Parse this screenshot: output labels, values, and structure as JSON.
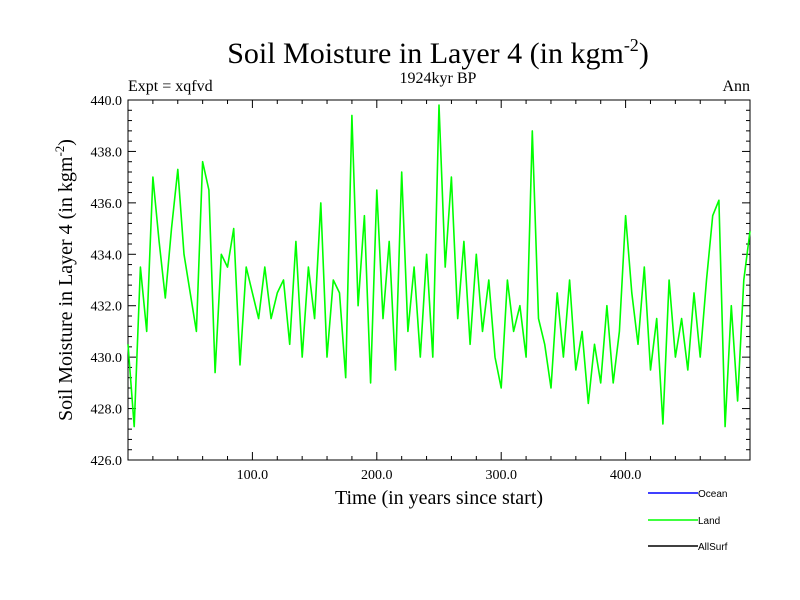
{
  "chart_data": {
    "type": "line",
    "title_main": "Soil Moisture in Layer 4 (in kgm",
    "title_sup": "-2",
    "title_close": ")",
    "subtitle": "1924kyr BP",
    "left_label": "Expt = xqfvd",
    "right_label": "Ann",
    "xlabel": "Time (in years since start)",
    "ylabel_main": "Soil Moisture in Layer 4 (in kgm",
    "ylabel_sup": "-2",
    "ylabel_close": ")",
    "xlim": [
      0,
      500
    ],
    "ylim": [
      426.0,
      440.0
    ],
    "x_ticks": [
      100,
      200,
      300,
      400
    ],
    "x_tick_labels": [
      "100.0",
      "200.0",
      "300.0",
      "400.0"
    ],
    "y_ticks": [
      426,
      428,
      430,
      432,
      434,
      436,
      438,
      440
    ],
    "y_tick_labels": [
      "426.0",
      "428.0",
      "430.0",
      "432.0",
      "434.0",
      "436.0",
      "438.0",
      "440.0"
    ],
    "legend": [
      {
        "name": "Ocean",
        "color": "#0000ff"
      },
      {
        "name": "Land",
        "color": "#00ff00"
      },
      {
        "name": "AllSurf",
        "color": "#000000"
      }
    ],
    "series": [
      {
        "name": "Land",
        "color": "#00ff00",
        "x": [
          0,
          5,
          10,
          15,
          20,
          25,
          30,
          35,
          40,
          45,
          50,
          55,
          60,
          65,
          70,
          75,
          80,
          85,
          90,
          95,
          100,
          105,
          110,
          115,
          120,
          125,
          130,
          135,
          140,
          145,
          150,
          155,
          160,
          165,
          170,
          175,
          180,
          185,
          190,
          195,
          200,
          205,
          210,
          215,
          220,
          225,
          230,
          235,
          240,
          245,
          250,
          255,
          260,
          265,
          270,
          275,
          280,
          285,
          290,
          295,
          300,
          305,
          310,
          315,
          320,
          325,
          330,
          335,
          340,
          345,
          350,
          355,
          360,
          365,
          370,
          375,
          380,
          385,
          390,
          395,
          400,
          405,
          410,
          415,
          420,
          425,
          430,
          435,
          440,
          445,
          450,
          455,
          460,
          465,
          470,
          475,
          480,
          485,
          490,
          495,
          500
        ],
        "values": [
          430.5,
          427.3,
          433.5,
          431.0,
          437.0,
          434.5,
          432.3,
          435.0,
          437.3,
          434.0,
          432.5,
          431.0,
          437.6,
          436.5,
          429.4,
          434.0,
          433.5,
          435.0,
          429.7,
          433.5,
          432.5,
          431.5,
          433.5,
          431.5,
          432.5,
          433.0,
          430.5,
          434.5,
          430.0,
          433.5,
          431.5,
          436.0,
          430.0,
          433.0,
          432.5,
          429.2,
          439.4,
          432.0,
          435.5,
          429.0,
          436.5,
          431.5,
          434.5,
          429.5,
          437.2,
          431.0,
          433.5,
          430.0,
          434.0,
          430.0,
          439.8,
          433.5,
          437.0,
          431.5,
          434.5,
          430.5,
          434.0,
          431.0,
          433.0,
          430.0,
          428.8,
          433.0,
          431.0,
          432.0,
          430.0,
          438.8,
          431.5,
          430.5,
          428.8,
          432.5,
          430.0,
          433.0,
          429.5,
          431.0,
          428.2,
          430.5,
          429.0,
          432.0,
          429.0,
          431.0,
          435.5,
          432.5,
          430.5,
          433.5,
          429.5,
          431.5,
          427.4,
          433.0,
          430.0,
          431.5,
          429.5,
          432.5,
          430.0,
          433.0,
          435.5,
          436.1,
          427.3,
          432.0,
          428.3,
          433.0,
          434.9
        ]
      }
    ]
  }
}
